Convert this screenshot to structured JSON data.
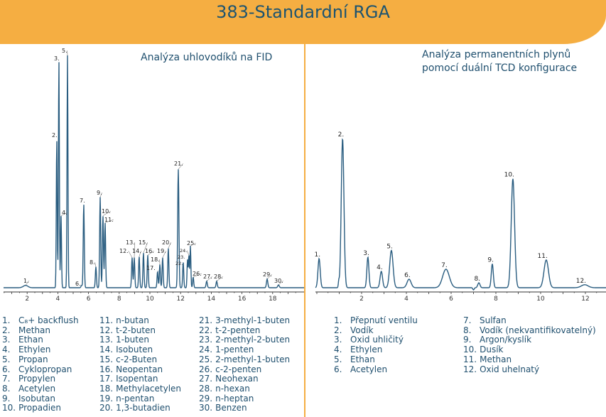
{
  "header": {
    "title": "383-Standardní RGA"
  },
  "colors": {
    "accent": "#f5ae42",
    "curve": "#2a5d80",
    "text": "#1f4f6e"
  },
  "chart_data": [
    {
      "type": "line",
      "title": "Analýza uhlovodíků na FID",
      "xlabel": "",
      "ylabel": "",
      "xlim": [
        0,
        19.5
      ],
      "x_ticks": [
        "2",
        "4",
        "6",
        "8",
        "10",
        "12",
        "14",
        "16",
        "18"
      ],
      "y_unit": "relative intensity (% of tallest peak)",
      "peaks": [
        {
          "label": "1.",
          "t": 1.9,
          "h": 1,
          "w": 0.15
        },
        {
          "label": "2.",
          "t": 3.93,
          "h": 64,
          "w": 0.03
        },
        {
          "label": "3.",
          "t": 4.07,
          "h": 98,
          "w": 0.03
        },
        {
          "label": "4.",
          "t": 4.21,
          "h": 31,
          "w": 0.03
        },
        {
          "label": "5.",
          "t": 4.63,
          "h": 100,
          "w": 0.03
        },
        {
          "label": "6.",
          "t": 5.55,
          "h": 1,
          "w": 0.04
        },
        {
          "label": "7.",
          "t": 5.69,
          "h": 36,
          "w": 0.035
        },
        {
          "label": "8.",
          "t": 6.48,
          "h": 9,
          "w": 0.035
        },
        {
          "label": "9.",
          "t": 6.76,
          "h": 39,
          "w": 0.035
        },
        {
          "label": "10.",
          "t": 6.94,
          "h": 31,
          "w": 0.035
        },
        {
          "label": "11.",
          "t": 7.08,
          "h": 28,
          "w": 0.035
        },
        {
          "label": "12.",
          "t": 8.84,
          "h": 13,
          "w": 0.035
        },
        {
          "label": "13.",
          "t": 8.98,
          "h": 13,
          "w": 0.035
        },
        {
          "label": "14.",
          "t": 9.3,
          "h": 13.5,
          "w": 0.035
        },
        {
          "label": "15.",
          "t": 9.58,
          "h": 15,
          "w": 0.035
        },
        {
          "label": "16.",
          "t": 9.86,
          "h": 14,
          "w": 0.035
        },
        {
          "label": "17.",
          "t": 10.5,
          "h": 7,
          "w": 0.035
        },
        {
          "label": "18.",
          "t": 10.65,
          "h": 10,
          "w": 0.035
        },
        {
          "label": "19.",
          "t": 10.83,
          "h": 13,
          "w": 0.035
        },
        {
          "label": "20.",
          "t": 11.2,
          "h": 17,
          "w": 0.035
        },
        {
          "label": "21.",
          "t": 11.85,
          "h": 51,
          "w": 0.04
        },
        {
          "label": "22.",
          "t": 12.17,
          "h": 11,
          "w": 0.035
        },
        {
          "label": "23.",
          "t": 12.45,
          "h": 12,
          "w": 0.03
        },
        {
          "label": "24.",
          "t": 12.54,
          "h": 14,
          "w": 0.03
        },
        {
          "label": "25.",
          "t": 12.64,
          "h": 18,
          "w": 0.03
        },
        {
          "label": "26.",
          "t": 12.82,
          "h": 4.6,
          "w": 0.035
        },
        {
          "label": "27.",
          "t": 13.7,
          "h": 2.8,
          "w": 0.04
        },
        {
          "label": "28.",
          "t": 14.35,
          "h": 2.8,
          "w": 0.04
        },
        {
          "label": "29.",
          "t": 17.64,
          "h": 3.7,
          "w": 0.045
        },
        {
          "label": "30.",
          "t": 18.38,
          "h": 1.2,
          "w": 0.05
        }
      ]
    },
    {
      "type": "line",
      "title": "Analýza permanentních plynů pomocí duální TCD konfigurace",
      "title_lines": [
        "Analýza permanentních plynů",
        "pomocí duální TCD konfigurace"
      ],
      "xlabel": "",
      "ylabel": "",
      "xlim": [
        0,
        13
      ],
      "x_ticks": [
        "2",
        "4",
        "6",
        "8",
        "10",
        "12"
      ],
      "y_unit": "relative intensity (% of tallest peak)",
      "peaks": [
        {
          "label": "1.",
          "t": 0.1,
          "h": 19.5,
          "w": 0.05
        },
        {
          "label": "",
          "t": 0.98,
          "h": 4,
          "w": 0.02
        },
        {
          "label": "2.",
          "t": 1.15,
          "h": 100,
          "w": 0.06
        },
        {
          "label": "3.",
          "t": 2.28,
          "h": 20.5,
          "w": 0.045
        },
        {
          "label": "4.",
          "t": 2.88,
          "h": 11,
          "w": 0.055
        },
        {
          "label": "5.",
          "t": 3.33,
          "h": 25,
          "w": 0.075
        },
        {
          "label": "6.",
          "t": 4.12,
          "h": 5.7,
          "w": 0.09
        },
        {
          "label": "7.",
          "t": 5.77,
          "h": 12.4,
          "w": 0.15
        },
        {
          "label": "",
          "t": 7.0,
          "h": -1.5,
          "w": 0.03
        },
        {
          "label": "8.",
          "t": 7.24,
          "h": 3.3,
          "w": 0.05
        },
        {
          "label": "9.",
          "t": 7.84,
          "h": 16,
          "w": 0.045
        },
        {
          "label": "10.",
          "t": 8.76,
          "h": 73,
          "w": 0.075
        },
        {
          "label": "11.",
          "t": 10.25,
          "h": 18.6,
          "w": 0.1
        },
        {
          "label": "12.",
          "t": 11.97,
          "h": 2,
          "w": 0.15
        }
      ]
    }
  ],
  "legend_fid": [
    {
      "num": "1.",
      "name": "C₈+ backflush"
    },
    {
      "num": "2.",
      "name": "Methan"
    },
    {
      "num": "3.",
      "name": "Ethan"
    },
    {
      "num": "4.",
      "name": "Ethylen"
    },
    {
      "num": "5.",
      "name": "Propan"
    },
    {
      "num": "6.",
      "name": "Cyklopropan"
    },
    {
      "num": "7.",
      "name": "Propylen"
    },
    {
      "num": "8.",
      "name": "Acetylen"
    },
    {
      "num": "9.",
      "name": "Isobutan"
    },
    {
      "num": "10.",
      "name": "Propadien"
    },
    {
      "num": "11.",
      "name": "n-butan"
    },
    {
      "num": "12.",
      "name": "t-2-buten"
    },
    {
      "num": "13.",
      "name": "1-buten"
    },
    {
      "num": "14.",
      "name": "Isobuten"
    },
    {
      "num": "15.",
      "name": "c-2-Buten"
    },
    {
      "num": "16.",
      "name": "Neopentan"
    },
    {
      "num": "17.",
      "name": "Isopentan"
    },
    {
      "num": "18.",
      "name": "Methylacetylen"
    },
    {
      "num": "19.",
      "name": "n-pentan"
    },
    {
      "num": "20.",
      "name": "1,3-butadien"
    },
    {
      "num": "21.",
      "name": "3-methyl-1-buten"
    },
    {
      "num": "22.",
      "name": "t-2-penten"
    },
    {
      "num": "23.",
      "name": "2-methyl-2-buten"
    },
    {
      "num": "24.",
      "name": "1-penten"
    },
    {
      "num": "25.",
      "name": "2-methyl-1-buten"
    },
    {
      "num": "26.",
      "name": "c-2-penten"
    },
    {
      "num": "27.",
      "name": "Neohexan"
    },
    {
      "num": "28.",
      "name": "n-hexan"
    },
    {
      "num": "29.",
      "name": "n-heptan"
    },
    {
      "num": "30.",
      "name": "Benzen"
    }
  ],
  "legend_tcd": [
    {
      "num": "1.",
      "name": "Přepnutí ventilu"
    },
    {
      "num": "2.",
      "name": "Vodík"
    },
    {
      "num": "3.",
      "name": "Oxid uhličitý"
    },
    {
      "num": "4.",
      "name": "Ethylen"
    },
    {
      "num": "5.",
      "name": "Ethan"
    },
    {
      "num": "6.",
      "name": "Acetylen"
    },
    {
      "num": "7.",
      "name": "Sulfan"
    },
    {
      "num": "8.",
      "name": "Vodík (nekvantifikovatelný)"
    },
    {
      "num": "9.",
      "name": "Argon/kyslík"
    },
    {
      "num": "10.",
      "name": "Dusík"
    },
    {
      "num": "11.",
      "name": "Methan"
    },
    {
      "num": "12.",
      "name": "Oxid uhelnatý"
    }
  ]
}
